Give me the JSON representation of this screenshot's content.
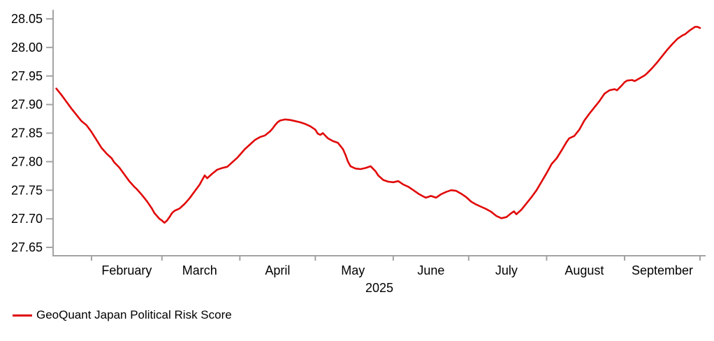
{
  "chart_data": {
    "type": "line",
    "title": "",
    "xlabel": "2025",
    "ylabel": "",
    "grid": false,
    "legend_position": "bottom-left",
    "ylim": [
      27.635,
      28.066
    ],
    "xlim": [
      "2025-01-17",
      "2025-10-03"
    ],
    "y_tick_labels": [
      "28.05",
      "28.00",
      "27.95",
      "27.90",
      "27.85",
      "27.80",
      "27.75",
      "27.70",
      "27.65"
    ],
    "y_tick_values": [
      28.05,
      28.0,
      27.95,
      27.9,
      27.85,
      27.8,
      27.75,
      27.7,
      27.65
    ],
    "x_tick_dates": [
      "2025-02-01",
      "2025-03-01",
      "2025-04-01",
      "2025-05-01",
      "2025-06-01",
      "2025-07-01",
      "2025-08-01",
      "2025-09-01",
      "2025-10-01"
    ],
    "x_month_labels": [
      {
        "label": "February",
        "center": "2025-02-15"
      },
      {
        "label": "March",
        "center": "2025-03-16"
      },
      {
        "label": "April",
        "center": "2025-04-16"
      },
      {
        "label": "May",
        "center": "2025-05-16"
      },
      {
        "label": "June",
        "center": "2025-06-16"
      },
      {
        "label": "July",
        "center": "2025-07-16"
      },
      {
        "label": "August",
        "center": "2025-08-16"
      },
      {
        "label": "September",
        "center": "2025-09-16"
      }
    ],
    "series": [
      {
        "name": "GeoQuant Japan Political Risk Score",
        "color": "#e10808",
        "points": [
          [
            "2025-01-18",
            27.928
          ],
          [
            "2025-01-20",
            27.917
          ],
          [
            "2025-01-22",
            27.905
          ],
          [
            "2025-01-24",
            27.893
          ],
          [
            "2025-01-26",
            27.882
          ],
          [
            "2025-01-28",
            27.871
          ],
          [
            "2025-01-30",
            27.864
          ],
          [
            "2025-02-01",
            27.852
          ],
          [
            "2025-02-03",
            27.838
          ],
          [
            "2025-02-05",
            27.824
          ],
          [
            "2025-02-07",
            27.814
          ],
          [
            "2025-02-09",
            27.806
          ],
          [
            "2025-02-10",
            27.799
          ],
          [
            "2025-02-12",
            27.79
          ],
          [
            "2025-02-14",
            27.778
          ],
          [
            "2025-02-16",
            27.766
          ],
          [
            "2025-02-18",
            27.756
          ],
          [
            "2025-02-19",
            27.752
          ],
          [
            "2025-02-21",
            27.742
          ],
          [
            "2025-02-23",
            27.731
          ],
          [
            "2025-02-25",
            27.718
          ],
          [
            "2025-02-26",
            27.71
          ],
          [
            "2025-02-27",
            27.705
          ],
          [
            "2025-02-28",
            27.7
          ],
          [
            "2025-03-01",
            27.697
          ],
          [
            "2025-03-02",
            27.693
          ],
          [
            "2025-03-03",
            27.697
          ],
          [
            "2025-03-04",
            27.703
          ],
          [
            "2025-03-05",
            27.71
          ],
          [
            "2025-03-06",
            27.714
          ],
          [
            "2025-03-08",
            27.718
          ],
          [
            "2025-03-10",
            27.726
          ],
          [
            "2025-03-12",
            27.736
          ],
          [
            "2025-03-14",
            27.748
          ],
          [
            "2025-03-16",
            27.76
          ],
          [
            "2025-03-17",
            27.768
          ],
          [
            "2025-03-18",
            27.776
          ],
          [
            "2025-03-19",
            27.771
          ],
          [
            "2025-03-21",
            27.779
          ],
          [
            "2025-03-23",
            27.786
          ],
          [
            "2025-03-25",
            27.789
          ],
          [
            "2025-03-27",
            27.791
          ],
          [
            "2025-03-29",
            27.799
          ],
          [
            "2025-03-31",
            27.807
          ],
          [
            "2025-04-01",
            27.812
          ],
          [
            "2025-04-03",
            27.822
          ],
          [
            "2025-04-05",
            27.83
          ],
          [
            "2025-04-07",
            27.838
          ],
          [
            "2025-04-09",
            27.843
          ],
          [
            "2025-04-11",
            27.846
          ],
          [
            "2025-04-13",
            27.853
          ],
          [
            "2025-04-14",
            27.858
          ],
          [
            "2025-04-15",
            27.864
          ],
          [
            "2025-04-16",
            27.869
          ],
          [
            "2025-04-17",
            27.872
          ],
          [
            "2025-04-19",
            27.874
          ],
          [
            "2025-04-21",
            27.873
          ],
          [
            "2025-04-23",
            27.871
          ],
          [
            "2025-04-25",
            27.869
          ],
          [
            "2025-04-27",
            27.866
          ],
          [
            "2025-04-29",
            27.862
          ],
          [
            "2025-05-01",
            27.856
          ],
          [
            "2025-05-02",
            27.849
          ],
          [
            "2025-05-03",
            27.847
          ],
          [
            "2025-05-04",
            27.85
          ],
          [
            "2025-05-06",
            27.841
          ],
          [
            "2025-05-08",
            27.836
          ],
          [
            "2025-05-10",
            27.833
          ],
          [
            "2025-05-12",
            27.822
          ],
          [
            "2025-05-13",
            27.812
          ],
          [
            "2025-05-14",
            27.8
          ],
          [
            "2025-05-15",
            27.792
          ],
          [
            "2025-05-17",
            27.788
          ],
          [
            "2025-05-19",
            27.787
          ],
          [
            "2025-05-21",
            27.789
          ],
          [
            "2025-05-23",
            27.792
          ],
          [
            "2025-05-25",
            27.783
          ],
          [
            "2025-05-26",
            27.776
          ],
          [
            "2025-05-28",
            27.768
          ],
          [
            "2025-05-30",
            27.765
          ],
          [
            "2025-06-01",
            27.764
          ],
          [
            "2025-06-03",
            27.766
          ],
          [
            "2025-06-05",
            27.76
          ],
          [
            "2025-06-07",
            27.756
          ],
          [
            "2025-06-09",
            27.75
          ],
          [
            "2025-06-11",
            27.744
          ],
          [
            "2025-06-13",
            27.739
          ],
          [
            "2025-06-14",
            27.737
          ],
          [
            "2025-06-16",
            27.74
          ],
          [
            "2025-06-18",
            27.737
          ],
          [
            "2025-06-20",
            27.743
          ],
          [
            "2025-06-22",
            27.747
          ],
          [
            "2025-06-24",
            27.75
          ],
          [
            "2025-06-26",
            27.749
          ],
          [
            "2025-06-28",
            27.744
          ],
          [
            "2025-06-30",
            27.738
          ],
          [
            "2025-07-02",
            27.73
          ],
          [
            "2025-07-04",
            27.725
          ],
          [
            "2025-07-06",
            27.721
          ],
          [
            "2025-07-08",
            27.717
          ],
          [
            "2025-07-10",
            27.712
          ],
          [
            "2025-07-12",
            27.705
          ],
          [
            "2025-07-14",
            27.701
          ],
          [
            "2025-07-16",
            27.703
          ],
          [
            "2025-07-18",
            27.71
          ],
          [
            "2025-07-19",
            27.713
          ],
          [
            "2025-07-20",
            27.708
          ],
          [
            "2025-07-22",
            27.716
          ],
          [
            "2025-07-24",
            27.727
          ],
          [
            "2025-07-26",
            27.738
          ],
          [
            "2025-07-28",
            27.75
          ],
          [
            "2025-07-30",
            27.765
          ],
          [
            "2025-08-01",
            27.78
          ],
          [
            "2025-08-02",
            27.788
          ],
          [
            "2025-08-03",
            27.796
          ],
          [
            "2025-08-05",
            27.806
          ],
          [
            "2025-08-07",
            27.82
          ],
          [
            "2025-08-09",
            27.835
          ],
          [
            "2025-08-10",
            27.841
          ],
          [
            "2025-08-12",
            27.845
          ],
          [
            "2025-08-14",
            27.856
          ],
          [
            "2025-08-16",
            27.872
          ],
          [
            "2025-08-18",
            27.884
          ],
          [
            "2025-08-20",
            27.895
          ],
          [
            "2025-08-22",
            27.906
          ],
          [
            "2025-08-24",
            27.919
          ],
          [
            "2025-08-26",
            27.925
          ],
          [
            "2025-08-28",
            27.927
          ],
          [
            "2025-08-29",
            27.925
          ],
          [
            "2025-08-31",
            27.934
          ],
          [
            "2025-09-01",
            27.939
          ],
          [
            "2025-09-02",
            27.942
          ],
          [
            "2025-09-04",
            27.943
          ],
          [
            "2025-09-05",
            27.941
          ],
          [
            "2025-09-07",
            27.946
          ],
          [
            "2025-09-09",
            27.951
          ],
          [
            "2025-09-10",
            27.955
          ],
          [
            "2025-09-12",
            27.964
          ],
          [
            "2025-09-14",
            27.974
          ],
          [
            "2025-09-16",
            27.985
          ],
          [
            "2025-09-18",
            27.996
          ],
          [
            "2025-09-20",
            28.006
          ],
          [
            "2025-09-22",
            28.015
          ],
          [
            "2025-09-24",
            28.021
          ],
          [
            "2025-09-25",
            28.023
          ],
          [
            "2025-09-27",
            28.03
          ],
          [
            "2025-09-29",
            28.036
          ],
          [
            "2025-09-30",
            28.036
          ],
          [
            "2025-10-01",
            28.034
          ]
        ]
      }
    ]
  },
  "legend": {
    "label": "GeoQuant Japan Political Risk Score"
  },
  "colors": {
    "line": "#e10808",
    "axis": "#a3a3a3",
    "text": "#000000",
    "background": "#ffffff"
  }
}
